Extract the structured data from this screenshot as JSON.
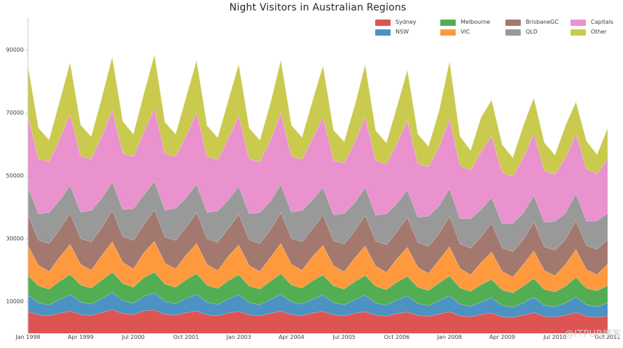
{
  "title": "Night Visitors in Australian Regions",
  "watermark": "@ITPUB博客",
  "axis": {
    "spine_color": "#c9c9c9",
    "tick_text_color": "#3f3f3f",
    "title_text_color": "#262626"
  },
  "chart_data": {
    "type": "area",
    "stacked": true,
    "title": "Night Visitors in Australian Regions",
    "xlabel": "",
    "ylabel": "",
    "grid": false,
    "legend_position": "top-right",
    "legend_row_order": [
      "Sydney",
      "Melbourne",
      "BrisbaneGC",
      "Capitals",
      "NSW",
      "VIC",
      "QLD",
      "Other"
    ],
    "ylim": [
      0,
      100000
    ],
    "y_ticks": [
      10000,
      30000,
      50000,
      70000,
      90000
    ],
    "x_tick_indices": [
      0,
      5,
      10,
      15,
      20,
      25,
      30,
      35,
      40,
      45,
      50,
      55
    ],
    "x_tick_labels": [
      "Jan 1998",
      "Apr 1999",
      "Jul 2000",
      "Oct 2001",
      "Jan 2003",
      "Apr 2004",
      "Jul 2005",
      "Oct 2006",
      "Jan 2008",
      "Apr 2009",
      "Jul 2010",
      "Oct 2011"
    ],
    "categories": [
      "Jan 1998",
      "Apr 1998",
      "Jul 1998",
      "Oct 1998",
      "Jan 1999",
      "Apr 1999",
      "Jul 1999",
      "Oct 1999",
      "Jan 2000",
      "Apr 2000",
      "Jul 2000",
      "Oct 2000",
      "Jan 2001",
      "Apr 2001",
      "Jul 2001",
      "Oct 2001",
      "Jan 2002",
      "Apr 2002",
      "Jul 2002",
      "Oct 2002",
      "Jan 2003",
      "Apr 2003",
      "Jul 2003",
      "Oct 2003",
      "Jan 2004",
      "Apr 2004",
      "Jul 2004",
      "Oct 2004",
      "Jan 2005",
      "Apr 2005",
      "Jul 2005",
      "Oct 2005",
      "Jan 2006",
      "Apr 2006",
      "Jul 2006",
      "Oct 2006",
      "Jan 2007",
      "Apr 2007",
      "Jul 2007",
      "Oct 2007",
      "Jan 2008",
      "Apr 2008",
      "Jul 2008",
      "Oct 2008",
      "Jan 2009",
      "Apr 2009",
      "Jul 2009",
      "Oct 2009",
      "Jan 2010",
      "Apr 2010",
      "Jul 2010",
      "Oct 2010",
      "Jan 2011",
      "Apr 2011",
      "Jul 2011",
      "Oct 2011"
    ],
    "series": [
      {
        "name": "Sydney",
        "color": "#dd5452",
        "values": [
          7000,
          5900,
          5600,
          6400,
          7100,
          6000,
          5700,
          6600,
          7600,
          6300,
          6000,
          7200,
          7400,
          6100,
          5800,
          6600,
          7100,
          5900,
          5600,
          6500,
          7000,
          5900,
          5600,
          6400,
          7100,
          6000,
          5700,
          6500,
          7000,
          5900,
          5600,
          6400,
          6900,
          5800,
          5500,
          6300,
          6800,
          5700,
          5400,
          6200,
          6900,
          5600,
          5300,
          6000,
          6500,
          5300,
          5100,
          5800,
          6600,
          5400,
          5200,
          5800,
          6700,
          5400,
          5200,
          5500
        ]
      },
      {
        "name": "NSW",
        "color": "#4c92c3",
        "values": [
          5200,
          3900,
          3500,
          4400,
          5300,
          4000,
          3600,
          4500,
          5400,
          4100,
          3600,
          4600,
          5500,
          4100,
          3700,
          4500,
          5400,
          4000,
          3600,
          4400,
          5300,
          3900,
          3500,
          4400,
          5400,
          4000,
          3600,
          4400,
          5200,
          3900,
          3500,
          4300,
          5300,
          3900,
          3500,
          4300,
          5200,
          3800,
          3400,
          4200,
          5100,
          3700,
          3300,
          4000,
          4800,
          3600,
          3200,
          3900,
          4900,
          3600,
          3300,
          3900,
          5000,
          3700,
          3300,
          4100
        ]
      },
      {
        "name": "Melbourne",
        "color": "#53ad53",
        "values": [
          6300,
          5300,
          5000,
          5800,
          6400,
          5400,
          5100,
          5900,
          6500,
          5500,
          5100,
          6000,
          6600,
          5500,
          5200,
          6000,
          6500,
          5400,
          5100,
          5900,
          6400,
          5300,
          5000,
          5800,
          6500,
          5400,
          5100,
          5900,
          6400,
          5300,
          5000,
          5800,
          6300,
          5300,
          4900,
          5700,
          6200,
          5200,
          4900,
          5600,
          6300,
          5200,
          4800,
          5500,
          5900,
          4900,
          4600,
          5300,
          6000,
          5000,
          4700,
          5300,
          6100,
          5200,
          5100,
          5600
        ]
      },
      {
        "name": "VIC",
        "color": "#ff993e",
        "values": [
          9400,
          6500,
          5600,
          7700,
          9500,
          6600,
          5700,
          7800,
          9700,
          6700,
          5800,
          7900,
          9800,
          6700,
          5800,
          7800,
          9600,
          6600,
          5700,
          7700,
          9400,
          6500,
          5600,
          7600,
          9600,
          6600,
          5700,
          7700,
          9400,
          6400,
          5500,
          7500,
          9300,
          6400,
          5500,
          7400,
          9200,
          6300,
          5400,
          7300,
          9300,
          6200,
          5200,
          7100,
          8700,
          5900,
          5000,
          6900,
          8800,
          6000,
          5100,
          6900,
          8900,
          6000,
          5100,
          6800
        ]
      },
      {
        "name": "BrisbaneGC",
        "color": "#a3786f",
        "values": [
          9800,
          8100,
          8900,
          8800,
          9900,
          8200,
          9000,
          8900,
          10000,
          8300,
          9100,
          9000,
          10100,
          8300,
          9100,
          8900,
          9900,
          8200,
          9000,
          8800,
          9800,
          8100,
          8900,
          8700,
          9900,
          8200,
          9000,
          8800,
          9700,
          8000,
          8800,
          8600,
          9800,
          8000,
          8800,
          8600,
          9600,
          7900,
          8600,
          8400,
          9700,
          7800,
          8500,
          8200,
          9100,
          7500,
          8100,
          8000,
          9200,
          7600,
          8200,
          8000,
          9300,
          7600,
          8100,
          7900
        ]
      },
      {
        "name": "QLD",
        "color": "#999999",
        "values": [
          8800,
          8300,
          9900,
          9200,
          8900,
          8400,
          10000,
          9300,
          9000,
          8500,
          10100,
          9400,
          9100,
          8500,
          10200,
          9300,
          9000,
          8400,
          10000,
          9200,
          8900,
          8300,
          9900,
          9100,
          9000,
          8400,
          10000,
          9200,
          8800,
          8200,
          9800,
          9000,
          8900,
          8200,
          9800,
          9000,
          8700,
          8100,
          9600,
          8800,
          8800,
          8000,
          9400,
          8600,
          8300,
          7700,
          9000,
          8400,
          8400,
          7800,
          9100,
          8400,
          8500,
          7800,
          9000,
          8300
        ]
      },
      {
        "name": "Capitals",
        "color": "#e992ce",
        "values": [
          22500,
          17500,
          16200,
          19600,
          22700,
          17700,
          16400,
          19800,
          23000,
          17900,
          16500,
          20000,
          23200,
          17900,
          16500,
          19800,
          22800,
          17700,
          16300,
          19600,
          22500,
          17500,
          16100,
          19400,
          22800,
          17700,
          16300,
          19600,
          22400,
          17300,
          16000,
          19200,
          22500,
          17300,
          15900,
          19100,
          22100,
          17000,
          15700,
          18800,
          22300,
          16900,
          15400,
          18400,
          19500,
          16300,
          14900,
          17600,
          19800,
          16400,
          15000,
          17600,
          19000,
          16500,
          15000,
          17300
        ]
      },
      {
        "name": "Other",
        "color": "#c9ca4e",
        "values": [
          16200,
          9800,
          6900,
          12000,
          16500,
          10000,
          7100,
          12200,
          16800,
          10100,
          7200,
          12300,
          17000,
          10100,
          7100,
          12200,
          16600,
          9900,
          7000,
          12000,
          16400,
          9800,
          6900,
          11900,
          16700,
          9900,
          7000,
          12000,
          16300,
          9600,
          6800,
          11700,
          16500,
          9600,
          6700,
          11600,
          16100,
          9400,
          6500,
          11400,
          18200,
          9300,
          6300,
          11000,
          11500,
          8800,
          6000,
          10200,
          11300,
          8900,
          6100,
          10200,
          10200,
          9000,
          6100,
          9800
        ]
      }
    ]
  }
}
